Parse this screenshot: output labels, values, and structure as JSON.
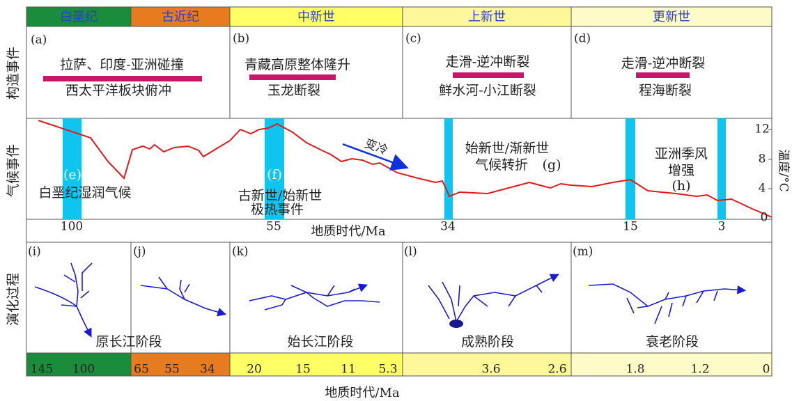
{
  "row_labels": [
    "构造事件",
    "气候事件",
    "演化过程"
  ],
  "periods": [
    "白垩纪",
    "古近纪",
    "中新世",
    "上新世",
    "更新世"
  ],
  "tectonic": [
    {
      "tag": "(a)",
      "lines": [
        "拉萨、印度-亚洲碰撞",
        "西太平洋板块俯冲"
      ]
    },
    {
      "tag": "(b)",
      "lines": [
        "青藏高原整体隆升",
        "玉龙断裂"
      ]
    },
    {
      "tag": "(c)",
      "lines": [
        "走滑-逆冲断裂",
        "鲜水河-小江断裂"
      ]
    },
    {
      "tag": "(d)",
      "lines": [
        "走滑-逆冲断裂",
        "程海断裂"
      ]
    }
  ],
  "climate": {
    "events": [
      {
        "tag": "(e)",
        "lines": [
          "白垩纪湿润气候"
        ]
      },
      {
        "tag": "(f)",
        "lines": [
          "古新世/始新世",
          "极热事件"
        ]
      },
      {
        "tag": "(g)",
        "lines": [
          "始新世/渐新世",
          "气候转折"
        ]
      },
      {
        "tag": "(h)",
        "lines": [
          "亚洲季风",
          "增强"
        ]
      }
    ],
    "cooling": "变冷",
    "y_axis_title": "温度/°C",
    "y_ticks": [
      "12",
      "8",
      "4",
      "0"
    ],
    "x_ticks": [
      "100",
      "55",
      "34",
      "15",
      "3"
    ],
    "x_title": "地质时代/Ma"
  },
  "evolution": {
    "tags": [
      "(i)",
      "(j)",
      "(k)",
      "(l)",
      "(m)"
    ],
    "stages": [
      "原长江阶段",
      "始长江阶段",
      "成熟阶段",
      "衰老阶段"
    ]
  },
  "time_bar": [
    "145",
    "100",
    "65",
    "55",
    "34",
    "20",
    "15",
    "11",
    "5.3",
    "3.6",
    "2.6",
    "1.8",
    "1.2",
    "0"
  ],
  "bottom_title": "地质时代/Ma"
}
